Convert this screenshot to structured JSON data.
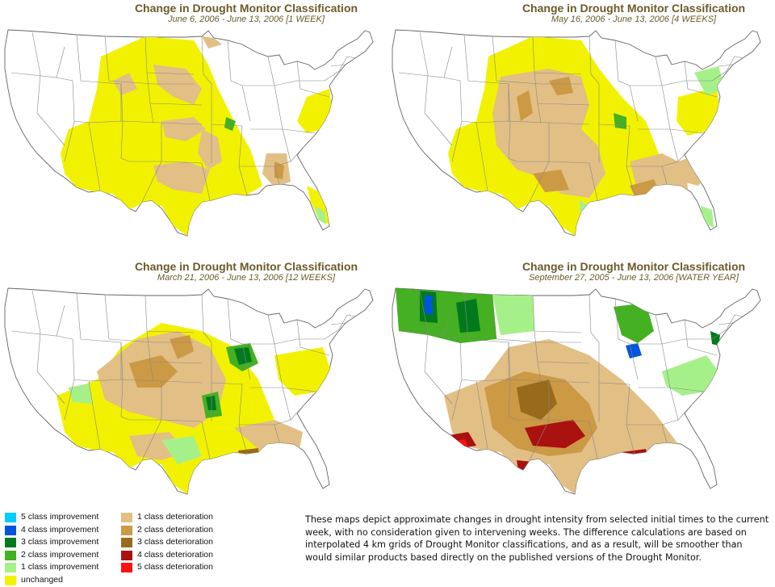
{
  "panels": [
    {
      "title": "Change in Drought Monitor Classification",
      "subtitle": "June 6, 2006 - June 13, 2006 [1 WEEK]"
    },
    {
      "title": "Change in Drought Monitor Classification",
      "subtitle": "May 16, 2006 - June 13, 2006 [4 WEEKS]"
    },
    {
      "title": "Change in Drought Monitor Classification",
      "subtitle": "March 21, 2006 - June 13, 2006 [12 WEEKS]"
    },
    {
      "title": "Change in Drought Monitor Classification",
      "subtitle": "September 27, 2005 - June 13, 2006 [WATER YEAR]"
    }
  ],
  "legend": {
    "left": [
      {
        "label": "5 class improvement",
        "color": "#00ccff"
      },
      {
        "label": "4 class improvement",
        "color": "#0055dd"
      },
      {
        "label": "3 class improvement",
        "color": "#007a1c"
      },
      {
        "label": "2 class improvement",
        "color": "#44b022"
      },
      {
        "label": "1 class improvement",
        "color": "#a6f08a"
      },
      {
        "label": "unchanged",
        "color": "#f2f200"
      }
    ],
    "right": [
      {
        "label": "1 class deterioration",
        "color": "#e2bf85"
      },
      {
        "label": "2 class deterioration",
        "color": "#cc9944"
      },
      {
        "label": "3 class deterioration",
        "color": "#9a6a1c"
      },
      {
        "label": "4 class deterioration",
        "color": "#aa1111"
      },
      {
        "label": "5 class deterioration",
        "color": "#ff1111"
      }
    ]
  },
  "note": "These maps depict approximate changes in drought intensity from selected initial times to the current week, with no consideration given to intervening weeks. The difference calculations are based on interpolated 4 km grids of Drought Monitor classifications, and as a result, will be smoother than would similar products based directly on the published versions of the Drought Monitor."
}
